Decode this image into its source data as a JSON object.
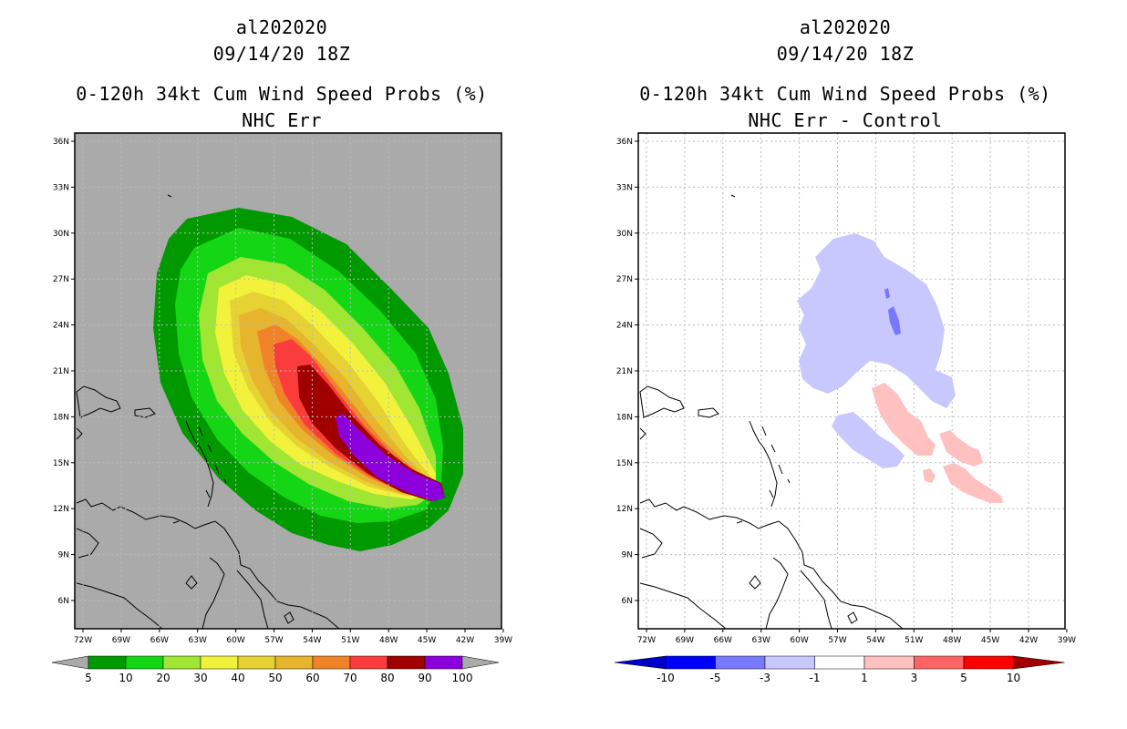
{
  "left": {
    "storm_id": "al202020",
    "datetime": "09/14/20 18Z",
    "title": "0-120h 34kt Cum Wind Speed Probs (%)",
    "subtitle": "NHC Err",
    "colorbar": {
      "colors": [
        "#009a00",
        "#14d614",
        "#a0e632",
        "#f2f23c",
        "#e6d232",
        "#e6b42d",
        "#f08228",
        "#fa3c3c",
        "#a00000",
        "#8c00dc"
      ],
      "labels": [
        "5",
        "10",
        "20",
        "30",
        "40",
        "50",
        "60",
        "70",
        "80",
        "90",
        "100"
      ]
    }
  },
  "right": {
    "storm_id": "al202020",
    "datetime": "09/14/20 18Z",
    "title": "0-120h 34kt Cum Wind Speed Probs (%)",
    "subtitle": "NHC Err - Control",
    "colorbar": {
      "colors": [
        "#0000c8",
        "#0000ff",
        "#7878ff",
        "#c8c8ff",
        "#ffffff",
        "#ffc0c0",
        "#ff6464",
        "#ff0000",
        "#a00000"
      ],
      "labels": [
        "-10",
        "-5",
        "-3",
        "-1",
        "1",
        "3",
        "5",
        "10"
      ]
    }
  },
  "axes": {
    "lat_labels": [
      "36N",
      "33N",
      "30N",
      "27N",
      "24N",
      "21N",
      "18N",
      "15N",
      "12N",
      "9N",
      "6N"
    ],
    "lon_labels": [
      "72W",
      "69W",
      "66W",
      "63W",
      "60W",
      "57W",
      "54W",
      "51W",
      "48W",
      "45W",
      "42W",
      "39W"
    ]
  }
}
